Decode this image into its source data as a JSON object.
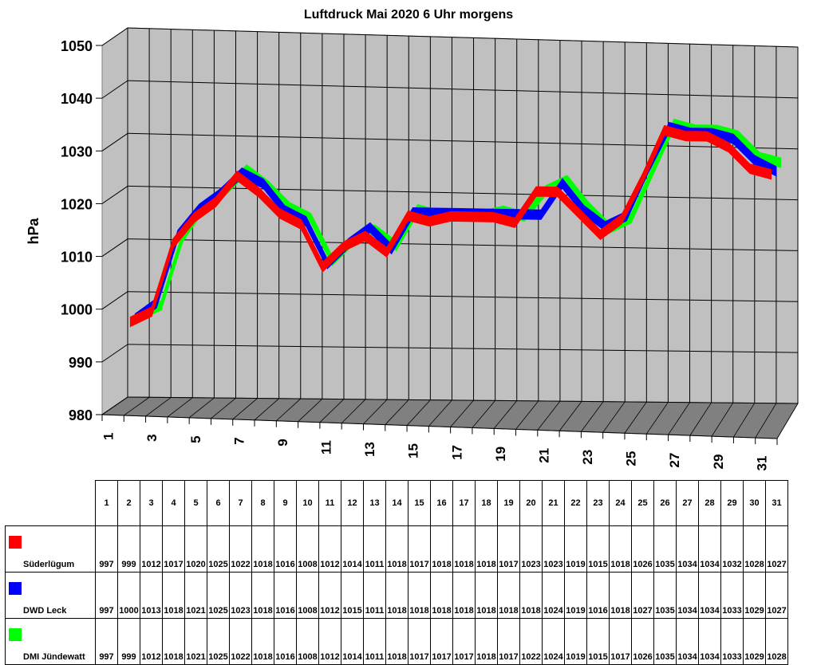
{
  "chart_data": {
    "type": "line",
    "subtype": "3d-ribbon",
    "title": "Luftdruck Mai 2020 6 Uhr morgens",
    "xlabel": "",
    "ylabel": "hPa",
    "ylim": [
      980,
      1050
    ],
    "yticks": [
      980,
      990,
      1000,
      1010,
      1020,
      1030,
      1040,
      1050
    ],
    "xticks_shown": [
      "1",
      "3",
      "5",
      "7",
      "9",
      "11",
      "13",
      "15",
      "17",
      "19",
      "21",
      "23",
      "25",
      "27",
      "29",
      "31"
    ],
    "grid": true,
    "legend_position": "table-below",
    "categories": [
      "1",
      "2",
      "3",
      "4",
      "5",
      "6",
      "7",
      "8",
      "9",
      "10",
      "11",
      "12",
      "13",
      "14",
      "15",
      "16",
      "17",
      "18",
      "19",
      "20",
      "21",
      "22",
      "23",
      "24",
      "25",
      "26",
      "27",
      "28",
      "29",
      "30",
      "31"
    ],
    "series": [
      {
        "name": "Süderlügum",
        "color": "#ff0000",
        "values": [
          997,
          999,
          1012,
          1017,
          1020,
          1025,
          1022,
          1018,
          1016,
          1008,
          1012,
          1014,
          1011,
          1018,
          1017,
          1018,
          1018,
          1018,
          1017,
          1023,
          1023,
          1019,
          1015,
          1018,
          1026,
          1035,
          1034,
          1034,
          1032,
          1028,
          1027
        ]
      },
      {
        "name": "DWD Leck",
        "color": "#0000ff",
        "values": [
          997,
          1000,
          1013,
          1018,
          1021,
          1025,
          1023,
          1018,
          1016,
          1008,
          1012,
          1015,
          1011,
          1018,
          1018,
          1018,
          1018,
          1018,
          1018,
          1018,
          1024,
          1019,
          1016,
          1018,
          1027,
          1035,
          1034,
          1034,
          1033,
          1029,
          1027
        ]
      },
      {
        "name": "DMI Jündewatt",
        "color": "#00ff00",
        "values": [
          997,
          999,
          1012,
          1018,
          1021,
          1025,
          1022,
          1018,
          1016,
          1008,
          1012,
          1014,
          1011,
          1018,
          1017,
          1017,
          1017,
          1018,
          1017,
          1022,
          1024,
          1019,
          1015,
          1017,
          1026,
          1035,
          1034,
          1034,
          1033,
          1029,
          1028
        ]
      }
    ]
  },
  "colors": {
    "wall": "#c0c0c0",
    "floor": "#808080",
    "grid": "#000000"
  }
}
